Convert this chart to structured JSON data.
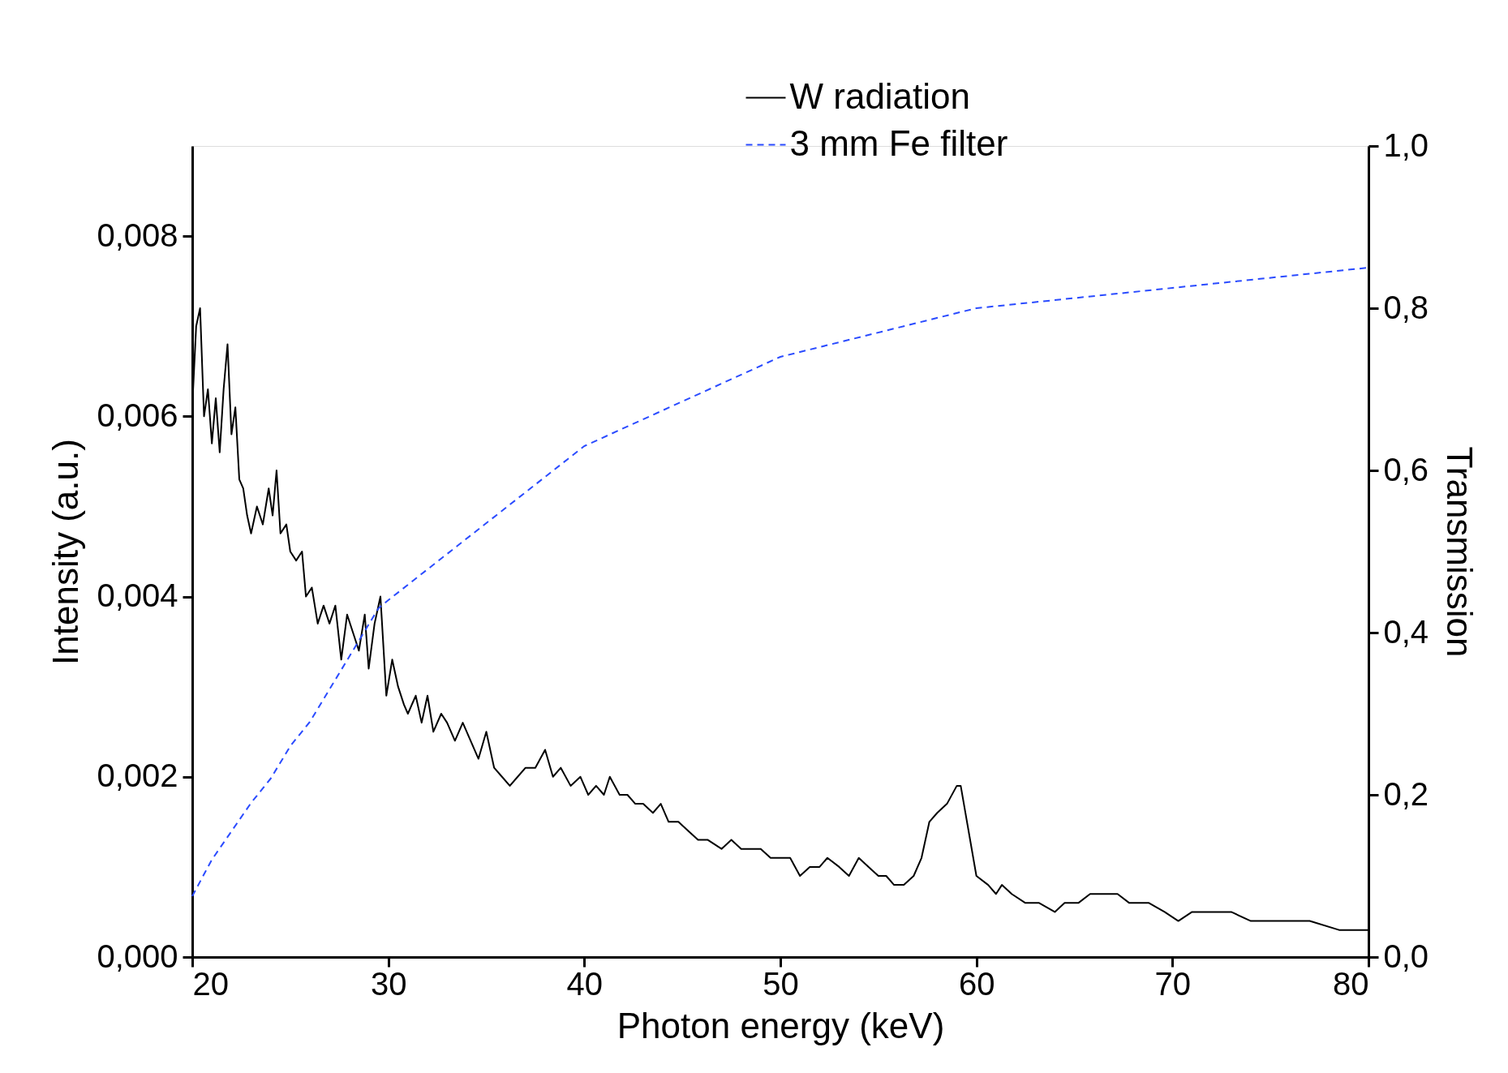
{
  "chart_data": {
    "type": "line",
    "xlabel": "Photon energy (keV)",
    "ylabel": "Intensity (a.u.)",
    "y2label": "Transmission",
    "xlim": [
      20,
      80
    ],
    "xticks": [
      20,
      30,
      40,
      50,
      60,
      70,
      80
    ],
    "ylim": [
      0,
      0.009
    ],
    "yticks": [
      {
        "value": 0,
        "label": "0,000"
      },
      {
        "value": 0.002,
        "label": "0,002"
      },
      {
        "value": 0.004,
        "label": "0,004"
      },
      {
        "value": 0.006,
        "label": "0,006"
      },
      {
        "value": 0.008,
        "label": "0,008"
      }
    ],
    "y2lim": [
      0,
      1
    ],
    "y2ticks": [
      {
        "value": 0,
        "label": "0,0"
      },
      {
        "value": 0.2,
        "label": "0,2"
      },
      {
        "value": 0.4,
        "label": "0,4"
      },
      {
        "value": 0.6,
        "label": "0,6"
      },
      {
        "value": 0.8,
        "label": "0,8"
      },
      {
        "value": 1,
        "label": "1,0"
      }
    ],
    "grid": false,
    "legend": "top right",
    "marker": "none",
    "series": [
      {
        "name": "W radiation",
        "color": "#000000",
        "line_style": "solid",
        "x": [
          20.0,
          20.2,
          20.4,
          20.6,
          20.8,
          21.0,
          21.2,
          21.4,
          21.6,
          21.8,
          22.0,
          22.2,
          22.4,
          22.6,
          22.8,
          23.0,
          23.3,
          23.6,
          23.9,
          24.1,
          24.3,
          24.5,
          24.8,
          25.0,
          25.3,
          25.6,
          25.8,
          26.1,
          26.4,
          26.7,
          27.0,
          27.3,
          27.6,
          27.9,
          28.2,
          28.5,
          28.8,
          29.0,
          29.3,
          29.6,
          29.9,
          30.2,
          30.5,
          30.8,
          31.0,
          31.4,
          31.7,
          32.0,
          32.3,
          32.7,
          33.0,
          33.4,
          33.8,
          34.2,
          34.6,
          35.0,
          35.4,
          35.8,
          36.2,
          36.6,
          37.0,
          37.5,
          38.0,
          38.4,
          38.8,
          39.3,
          39.8,
          40.2,
          40.6,
          41.0,
          41.3,
          41.8,
          42.2,
          42.6,
          43.0,
          43.5,
          43.9,
          44.3,
          44.8,
          45.3,
          45.8,
          46.3,
          47.0,
          47.5,
          48.0,
          48.5,
          49.0,
          49.5,
          50.0,
          50.5,
          51.0,
          51.5,
          52.0,
          52.4,
          53.0,
          53.5,
          54.0,
          54.5,
          55.0,
          55.4,
          55.8,
          56.3,
          56.8,
          57.2,
          57.6,
          58.0,
          58.5,
          59.0,
          59.2,
          60.0,
          60.6,
          61.0,
          61.3,
          61.8,
          62.5,
          63.2,
          64.0,
          64.5,
          65.2,
          65.8,
          66.5,
          67.2,
          67.8,
          68.8,
          69.6,
          70.3,
          71.0,
          72.0,
          73.0,
          74.0,
          75.5,
          77.0,
          78.5,
          80.0
        ],
        "values": [
          0.0061,
          0.007,
          0.0072,
          0.006,
          0.0063,
          0.0057,
          0.0062,
          0.0056,
          0.0063,
          0.0068,
          0.0058,
          0.0061,
          0.0053,
          0.0052,
          0.0049,
          0.0047,
          0.005,
          0.0048,
          0.0052,
          0.0049,
          0.0054,
          0.0047,
          0.0048,
          0.0045,
          0.0044,
          0.0045,
          0.004,
          0.0041,
          0.0037,
          0.0039,
          0.0037,
          0.0039,
          0.0033,
          0.0038,
          0.0036,
          0.0034,
          0.0038,
          0.0032,
          0.0037,
          0.004,
          0.0029,
          0.0033,
          0.003,
          0.0028,
          0.0027,
          0.0029,
          0.0026,
          0.0029,
          0.0025,
          0.0027,
          0.0026,
          0.0024,
          0.0026,
          0.0024,
          0.0022,
          0.0025,
          0.0021,
          0.002,
          0.0019,
          0.002,
          0.0021,
          0.0021,
          0.0023,
          0.002,
          0.0021,
          0.0019,
          0.002,
          0.0018,
          0.0019,
          0.0018,
          0.002,
          0.0018,
          0.0018,
          0.0017,
          0.0017,
          0.0016,
          0.0017,
          0.0015,
          0.0015,
          0.0014,
          0.0013,
          0.0013,
          0.0012,
          0.0013,
          0.0012,
          0.0012,
          0.0012,
          0.0011,
          0.0011,
          0.0011,
          0.0009,
          0.001,
          0.001,
          0.0011,
          0.001,
          0.0009,
          0.0011,
          0.001,
          0.0009,
          0.0009,
          0.0008,
          0.0008,
          0.0009,
          0.0011,
          0.0015,
          0.0016,
          0.0017,
          0.0019,
          0.0019,
          0.0009,
          0.0008,
          0.0007,
          0.0008,
          0.0007,
          0.0006,
          0.0006,
          0.0005,
          0.0006,
          0.0006,
          0.0007,
          0.0007,
          0.0007,
          0.0006,
          0.0006,
          0.0005,
          0.0004,
          0.0005,
          0.0005,
          0.0005,
          0.0004,
          0.0004,
          0.0004,
          0.0003,
          0.0003
        ]
      },
      {
        "name": "3 mm Fe filter",
        "color": "#2a4bff",
        "line_style": "dashed",
        "axis": "y2",
        "x": [
          20,
          21,
          22,
          23,
          24,
          25,
          26,
          27,
          28,
          29,
          29.5,
          30,
          35,
          40,
          45,
          50,
          60,
          70,
          80
        ],
        "values": [
          0.075,
          0.12,
          0.155,
          0.19,
          0.22,
          0.26,
          0.29,
          0.33,
          0.37,
          0.41,
          0.43,
          0.44,
          0.535,
          0.63,
          0.685,
          0.74,
          0.8,
          0.825,
          0.85
        ]
      }
    ]
  }
}
